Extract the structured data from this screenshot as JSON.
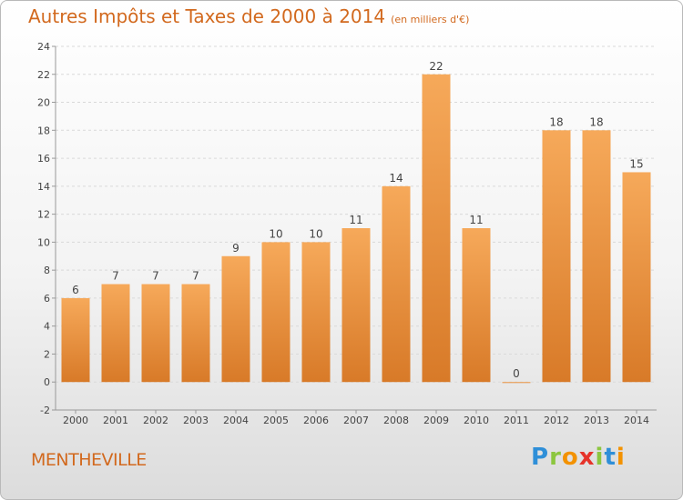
{
  "title": "Autres Impôts et Taxes de 2000 à 2014",
  "subtitle": "(en milliers d'€)",
  "commune": "MENTHEVILLE",
  "brand": {
    "name": "Proxiti",
    "letters": [
      "P",
      "r",
      "o",
      "x",
      "i",
      "t",
      "i"
    ],
    "letter_colors": [
      "#2f8fd8",
      "#8cc63f",
      "#f39200",
      "#e6332a",
      "#8cc63f",
      "#2f8fd8",
      "#f39200"
    ]
  },
  "colors": {
    "bar_top": "#f6a95a",
    "bar_bottom": "#d87a28",
    "title": "#d2691e",
    "axis": "#999999",
    "grid": "#d9d9d9"
  },
  "chart_data": {
    "type": "bar",
    "categories": [
      "2000",
      "2001",
      "2002",
      "2003",
      "2004",
      "2005",
      "2006",
      "2007",
      "2008",
      "2009",
      "2010",
      "2011",
      "2012",
      "2013",
      "2014"
    ],
    "values": [
      6,
      7,
      7,
      7,
      9,
      10,
      10,
      11,
      14,
      22,
      11,
      0,
      18,
      18,
      15
    ],
    "ylim": [
      -2,
      24
    ],
    "yticks": [
      -2,
      0,
      2,
      4,
      6,
      8,
      10,
      12,
      14,
      16,
      18,
      20,
      22,
      24
    ],
    "grid": "horizontal dashed",
    "data_labels": true
  }
}
